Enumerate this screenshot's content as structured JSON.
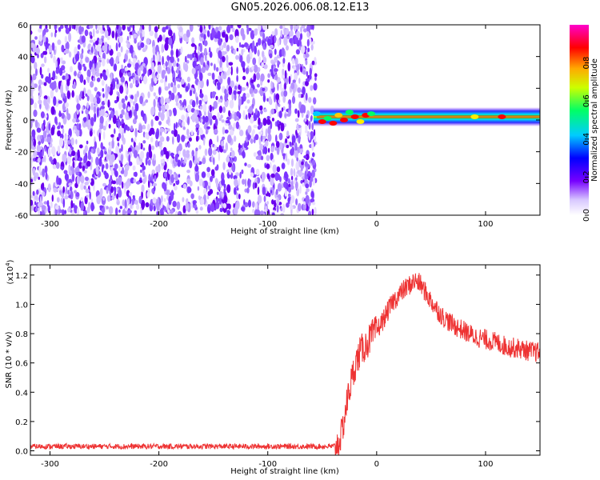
{
  "title": "GN05.2026.006.08.12.E13",
  "chart_data": [
    {
      "type": "heatmap",
      "xlabel": "Height of straight line (km)",
      "ylabel": "Frequency (Hz)",
      "xlim": [
        -318,
        150
      ],
      "ylim": [
        -60,
        60
      ],
      "xticks": [
        -300,
        -200,
        -100,
        0,
        100
      ],
      "xtick_labels": [
        "-300",
        "-200",
        "-100",
        "0",
        "100"
      ],
      "yticks": [
        -60,
        -40,
        -20,
        0,
        20,
        40,
        60
      ],
      "ytick_labels": [
        "-60",
        "-40",
        "-20",
        "0",
        "20",
        "40",
        "60"
      ],
      "colorbar": {
        "label": "Normalized spectral amplitude",
        "range": [
          0.0,
          1.0
        ],
        "ticks": [
          0.0,
          0.2,
          0.4,
          0.6,
          0.8
        ],
        "tick_labels": [
          "0.0",
          "0.2",
          "0.4",
          "0.6",
          "0.8"
        ],
        "colormap": "rainbow (white-purple-blue-cyan-green-yellow-red-magenta)"
      },
      "noise_region": {
        "x_range": [
          -318,
          -58
        ],
        "freq_range": [
          -60,
          60
        ],
        "amplitude_range": [
          0.0,
          0.15
        ]
      },
      "signal_band": {
        "x_range": [
          -58,
          150
        ],
        "center_freq_hz": 2,
        "amplitude_range": [
          0.2,
          0.95
        ]
      }
    },
    {
      "type": "line",
      "xlabel": "Height of straight line (km)",
      "ylabel": "SNR (10 * v/v)",
      "yscale_label": "(x10",
      "yscale_exp": "4",
      "yscale_suffix": ")",
      "xlim": [
        -318,
        150
      ],
      "ylim": [
        -0.03,
        1.27
      ],
      "xticks": [
        -300,
        -200,
        -100,
        0,
        100
      ],
      "xtick_labels": [
        "-300",
        "-200",
        "-100",
        "0",
        "100"
      ],
      "yticks": [
        0.0,
        0.2,
        0.4,
        0.6,
        0.8,
        1.0,
        1.2
      ],
      "ytick_labels": [
        "0.0",
        "0.2",
        "0.4",
        "0.6",
        "0.8",
        "1.0",
        "1.2"
      ],
      "series": [
        {
          "name": "SNR",
          "color": "#ee3333",
          "x": [
            -318,
            -200,
            -60,
            -40,
            -35,
            -32,
            -28,
            -25,
            -20,
            -15,
            -10,
            -5,
            0,
            5,
            10,
            15,
            20,
            25,
            30,
            35,
            40,
            45,
            50,
            55,
            60,
            70,
            80,
            90,
            100,
            110,
            120,
            130,
            140,
            150
          ],
          "values": [
            0.03,
            0.03,
            0.03,
            0.03,
            0.05,
            0.12,
            0.3,
            0.42,
            0.58,
            0.68,
            0.72,
            0.78,
            0.82,
            0.88,
            0.95,
            1.02,
            1.06,
            1.1,
            1.13,
            1.16,
            1.14,
            1.08,
            1.02,
            0.97,
            0.92,
            0.86,
            0.82,
            0.78,
            0.76,
            0.74,
            0.71,
            0.7,
            0.68,
            0.67
          ],
          "noise_amplitude": 0.05
        }
      ]
    }
  ]
}
